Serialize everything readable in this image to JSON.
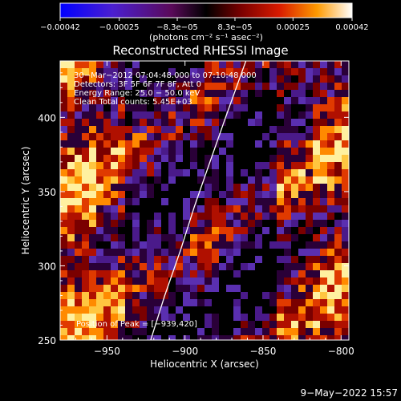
{
  "chart_data": {
    "type": "heatmap",
    "title": "Reconstructed RHESSI Image",
    "xlabel": "Heliocentric X (arcsec)",
    "ylabel": "Heliocentric Y (arcsec)",
    "xlim": [
      -980,
      -795
    ],
    "ylim": [
      250,
      438
    ],
    "x_ticks": [
      -950,
      -900,
      -850,
      -800
    ],
    "y_ticks": [
      250,
      300,
      350,
      400
    ],
    "x_tick_labels": [
      "−950",
      "−900",
      "−850",
      "−800"
    ],
    "y_tick_labels": [
      "250",
      "300",
      "350",
      "400"
    ],
    "colorbar": {
      "min": -0.00042,
      "max": 0.00042,
      "tick_values": [
        -0.00042,
        -0.00025,
        -8.3e-05,
        8.3e-05,
        0.00025,
        0.00042
      ],
      "tick_labels": [
        "−0.00042",
        "−0.00025",
        "−8.3e−05",
        "8.3e−05",
        "0.00025",
        "0.00042"
      ],
      "unit_label": "(photons cm⁻² s⁻¹ asec⁻²)"
    },
    "annotations": [
      "30−Mar−2012 07:04:48.000 to 07:10:48.000",
      "Detectors: 3F 5F 6F 7F 8F, Att 0",
      "Energy Range: 25.0 − 50.0 keV",
      "Clean    Total counts: 5.45E+03"
    ],
    "peak_label": "Position of Peak = [−939,420]",
    "peak": [
      -939,
      420
    ],
    "limb_curve": {
      "x": [
        -922,
        -913,
        -903,
        -894,
        -884,
        -874,
        -861
      ],
      "y": [
        250,
        280,
        310,
        340,
        370,
        400,
        438
      ]
    },
    "grid_bands": [
      {
        "x0": -980,
        "x1": -958,
        "level": 0.72
      },
      {
        "x0": -958,
        "x1": -940,
        "level": 0.55
      },
      {
        "x0": -940,
        "x1": -918,
        "level": 0.3
      },
      {
        "x0": -918,
        "x1": -900,
        "level": 0.18
      },
      {
        "x0": -900,
        "x1": -882,
        "level": 0.35
      },
      {
        "x0": -882,
        "x1": -860,
        "level": 0.2
      },
      {
        "x0": -860,
        "x1": -842,
        "level": 0.15
      },
      {
        "x0": -842,
        "x1": -820,
        "level": 0.45
      },
      {
        "x0": -820,
        "x1": -795,
        "level": 0.62
      }
    ]
  },
  "footer": {
    "date": "9−May−2022 15:57"
  }
}
